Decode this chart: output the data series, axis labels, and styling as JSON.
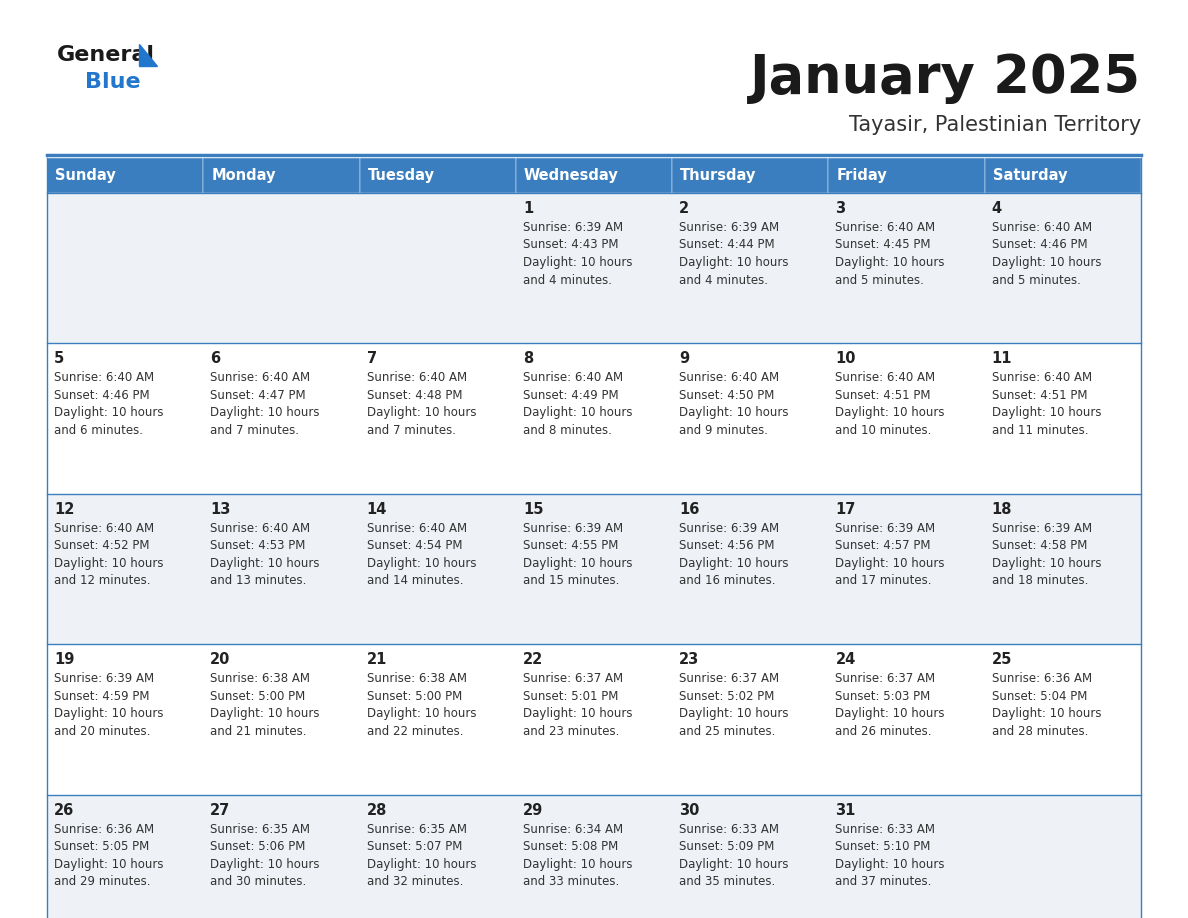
{
  "title": "January 2025",
  "subtitle": "Tayasir, Palestinian Territory",
  "days_of_week": [
    "Sunday",
    "Monday",
    "Tuesday",
    "Wednesday",
    "Thursday",
    "Friday",
    "Saturday"
  ],
  "header_bg": "#3a7ebf",
  "header_text": "#ffffff",
  "row_bg_odd": "#eef2f7",
  "row_bg_even": "#ffffff",
  "cell_border": "#3a7ebf",
  "day_num_color": "#222222",
  "text_color": "#333333",
  "title_color": "#1a1a1a",
  "subtitle_color": "#333333",
  "logo_general_color": "#1a1a1a",
  "logo_blue_color": "#2277cc",
  "fig_width": 11.88,
  "fig_height": 9.18,
  "dpi": 100,
  "weeks": [
    [
      {
        "day": "",
        "sunrise": "",
        "sunset": "",
        "daylight": ""
      },
      {
        "day": "",
        "sunrise": "",
        "sunset": "",
        "daylight": ""
      },
      {
        "day": "",
        "sunrise": "",
        "sunset": "",
        "daylight": ""
      },
      {
        "day": "1",
        "sunrise": "6:39 AM",
        "sunset": "4:43 PM",
        "daylight": "10 hours and 4 minutes."
      },
      {
        "day": "2",
        "sunrise": "6:39 AM",
        "sunset": "4:44 PM",
        "daylight": "10 hours and 4 minutes."
      },
      {
        "day": "3",
        "sunrise": "6:40 AM",
        "sunset": "4:45 PM",
        "daylight": "10 hours and 5 minutes."
      },
      {
        "day": "4",
        "sunrise": "6:40 AM",
        "sunset": "4:46 PM",
        "daylight": "10 hours and 5 minutes."
      }
    ],
    [
      {
        "day": "5",
        "sunrise": "6:40 AM",
        "sunset": "4:46 PM",
        "daylight": "10 hours and 6 minutes."
      },
      {
        "day": "6",
        "sunrise": "6:40 AM",
        "sunset": "4:47 PM",
        "daylight": "10 hours and 7 minutes."
      },
      {
        "day": "7",
        "sunrise": "6:40 AM",
        "sunset": "4:48 PM",
        "daylight": "10 hours and 7 minutes."
      },
      {
        "day": "8",
        "sunrise": "6:40 AM",
        "sunset": "4:49 PM",
        "daylight": "10 hours and 8 minutes."
      },
      {
        "day": "9",
        "sunrise": "6:40 AM",
        "sunset": "4:50 PM",
        "daylight": "10 hours and 9 minutes."
      },
      {
        "day": "10",
        "sunrise": "6:40 AM",
        "sunset": "4:51 PM",
        "daylight": "10 hours and 10 minutes."
      },
      {
        "day": "11",
        "sunrise": "6:40 AM",
        "sunset": "4:51 PM",
        "daylight": "10 hours and 11 minutes."
      }
    ],
    [
      {
        "day": "12",
        "sunrise": "6:40 AM",
        "sunset": "4:52 PM",
        "daylight": "10 hours and 12 minutes."
      },
      {
        "day": "13",
        "sunrise": "6:40 AM",
        "sunset": "4:53 PM",
        "daylight": "10 hours and 13 minutes."
      },
      {
        "day": "14",
        "sunrise": "6:40 AM",
        "sunset": "4:54 PM",
        "daylight": "10 hours and 14 minutes."
      },
      {
        "day": "15",
        "sunrise": "6:39 AM",
        "sunset": "4:55 PM",
        "daylight": "10 hours and 15 minutes."
      },
      {
        "day": "16",
        "sunrise": "6:39 AM",
        "sunset": "4:56 PM",
        "daylight": "10 hours and 16 minutes."
      },
      {
        "day": "17",
        "sunrise": "6:39 AM",
        "sunset": "4:57 PM",
        "daylight": "10 hours and 17 minutes."
      },
      {
        "day": "18",
        "sunrise": "6:39 AM",
        "sunset": "4:58 PM",
        "daylight": "10 hours and 18 minutes."
      }
    ],
    [
      {
        "day": "19",
        "sunrise": "6:39 AM",
        "sunset": "4:59 PM",
        "daylight": "10 hours and 20 minutes."
      },
      {
        "day": "20",
        "sunrise": "6:38 AM",
        "sunset": "5:00 PM",
        "daylight": "10 hours and 21 minutes."
      },
      {
        "day": "21",
        "sunrise": "6:38 AM",
        "sunset": "5:00 PM",
        "daylight": "10 hours and 22 minutes."
      },
      {
        "day": "22",
        "sunrise": "6:37 AM",
        "sunset": "5:01 PM",
        "daylight": "10 hours and 23 minutes."
      },
      {
        "day": "23",
        "sunrise": "6:37 AM",
        "sunset": "5:02 PM",
        "daylight": "10 hours and 25 minutes."
      },
      {
        "day": "24",
        "sunrise": "6:37 AM",
        "sunset": "5:03 PM",
        "daylight": "10 hours and 26 minutes."
      },
      {
        "day": "25",
        "sunrise": "6:36 AM",
        "sunset": "5:04 PM",
        "daylight": "10 hours and 28 minutes."
      }
    ],
    [
      {
        "day": "26",
        "sunrise": "6:36 AM",
        "sunset": "5:05 PM",
        "daylight": "10 hours and 29 minutes."
      },
      {
        "day": "27",
        "sunrise": "6:35 AM",
        "sunset": "5:06 PM",
        "daylight": "10 hours and 30 minutes."
      },
      {
        "day": "28",
        "sunrise": "6:35 AM",
        "sunset": "5:07 PM",
        "daylight": "10 hours and 32 minutes."
      },
      {
        "day": "29",
        "sunrise": "6:34 AM",
        "sunset": "5:08 PM",
        "daylight": "10 hours and 33 minutes."
      },
      {
        "day": "30",
        "sunrise": "6:33 AM",
        "sunset": "5:09 PM",
        "daylight": "10 hours and 35 minutes."
      },
      {
        "day": "31",
        "sunrise": "6:33 AM",
        "sunset": "5:10 PM",
        "daylight": "10 hours and 37 minutes."
      },
      {
        "day": "",
        "sunrise": "",
        "sunset": "",
        "daylight": ""
      }
    ]
  ]
}
